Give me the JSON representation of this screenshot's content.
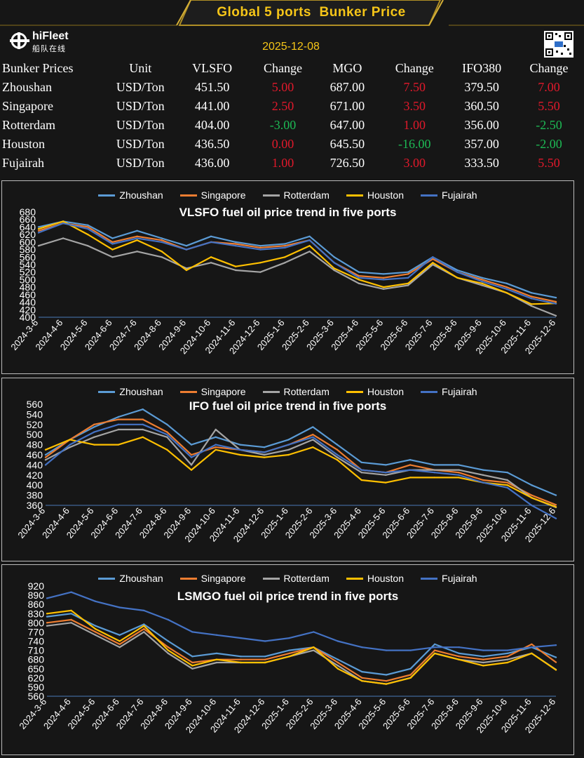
{
  "header": {
    "title": "Global 5 ports  Bunker Price",
    "brand": "hiFleet",
    "brand_sub": "船队在线",
    "date": "2025-12-08"
  },
  "colors": {
    "accent": "#f5c518",
    "up": "#e0192b",
    "down": "#1db954",
    "Zhoushan": "#5b9bd5",
    "Singapore": "#ed7d31",
    "Rotterdam": "#a5a5a5",
    "Houston": "#ffc000",
    "Fujairah": "#4472c4"
  },
  "table": {
    "headers": [
      "Bunker Prices",
      "Unit",
      "VLSFO",
      "Change",
      "MGO",
      "Change",
      "IFO380",
      "Change"
    ],
    "rows": [
      {
        "port": "Zhoushan",
        "unit": "USD/Ton",
        "vlsfo": "451.50",
        "vlsfo_chg": "5.00",
        "mgo": "687.00",
        "mgo_chg": "7.50",
        "ifo": "379.50",
        "ifo_chg": "7.00"
      },
      {
        "port": "Singapore",
        "unit": "USD/Ton",
        "vlsfo": "441.00",
        "vlsfo_chg": "2.50",
        "mgo": "671.00",
        "mgo_chg": "3.50",
        "ifo": "360.50",
        "ifo_chg": "5.50"
      },
      {
        "port": "Rotterdam",
        "unit": "USD/Ton",
        "vlsfo": "404.00",
        "vlsfo_chg": "-3.00",
        "mgo": "647.00",
        "mgo_chg": "1.00",
        "ifo": "356.00",
        "ifo_chg": "-2.50"
      },
      {
        "port": "Houston",
        "unit": "USD/Ton",
        "vlsfo": "436.50",
        "vlsfo_chg": "0.00",
        "mgo": "645.50",
        "mgo_chg": "-16.00",
        "ifo": "357.00",
        "ifo_chg": "-2.00"
      },
      {
        "port": "Fujairah",
        "unit": "USD/Ton",
        "vlsfo": "436.00",
        "vlsfo_chg": "1.00",
        "mgo": "726.50",
        "mgo_chg": "3.00",
        "ifo": "333.50",
        "ifo_chg": "5.50"
      }
    ]
  },
  "chart_data": [
    {
      "type": "line",
      "title": "VLSFO fuel oil price trend in five ports",
      "legend": [
        "Zhoushan",
        "Singapore",
        "Rotterdam",
        "Houston",
        "Fujairah"
      ],
      "legend_position": "top",
      "x": [
        "2024-3-6",
        "2024-4-6",
        "2024-5-6",
        "2024-6-6",
        "2024-7-6",
        "2024-8-6",
        "2024-9-6",
        "2024-10-6",
        "2024-11-6",
        "2024-12-6",
        "2025-1-6",
        "2025-2-6",
        "2025-3-6",
        "2025-4-6",
        "2025-5-6",
        "2025-6-6",
        "2025-7-6",
        "2025-8-6",
        "2025-9-6",
        "2025-10-6",
        "2025-11-6",
        "2025-12-6"
      ],
      "yticks": [
        400,
        420,
        440,
        460,
        480,
        500,
        520,
        540,
        560,
        580,
        600,
        620,
        640,
        660,
        680
      ],
      "ylim": [
        400,
        680
      ],
      "series": [
        {
          "name": "Zhoushan",
          "values": [
            640,
            655,
            645,
            610,
            630,
            610,
            590,
            615,
            600,
            590,
            595,
            615,
            560,
            520,
            515,
            520,
            560,
            525,
            505,
            490,
            465,
            452
          ]
        },
        {
          "name": "Singapore",
          "values": [
            630,
            650,
            640,
            600,
            615,
            605,
            580,
            600,
            595,
            585,
            590,
            605,
            545,
            510,
            505,
            515,
            555,
            520,
            500,
            480,
            455,
            441
          ]
        },
        {
          "name": "Rotterdam",
          "values": [
            590,
            610,
            590,
            560,
            575,
            560,
            530,
            545,
            525,
            520,
            545,
            575,
            525,
            490,
            475,
            485,
            540,
            505,
            485,
            465,
            430,
            404
          ]
        },
        {
          "name": "Houston",
          "values": [
            635,
            655,
            620,
            580,
            605,
            575,
            525,
            560,
            535,
            545,
            560,
            590,
            530,
            500,
            480,
            490,
            545,
            505,
            490,
            465,
            435,
            437
          ]
        },
        {
          "name": "Fujairah",
          "values": [
            625,
            650,
            635,
            595,
            610,
            600,
            580,
            600,
            590,
            580,
            585,
            605,
            545,
            505,
            500,
            505,
            560,
            520,
            495,
            475,
            450,
            436
          ]
        }
      ]
    },
    {
      "type": "line",
      "title": "IFO fuel oil price trend in five ports",
      "legend": [
        "Zhoushan",
        "Singapore",
        "Rotterdam",
        "Houston",
        "Fujairah"
      ],
      "legend_position": "top",
      "x": [
        "2024-3-6",
        "2024-4-6",
        "2024-5-6",
        "2024-6-6",
        "2024-7-6",
        "2024-8-6",
        "2024-9-6",
        "2024-10-6",
        "2024-11-6",
        "2024-12-6",
        "2025-1-6",
        "2025-2-6",
        "2025-3-6",
        "2025-4-6",
        "2025-5-6",
        "2025-6-6",
        "2025-7-6",
        "2025-8-6",
        "2025-9-6",
        "2025-10-6",
        "2025-11-6",
        "2025-12-6"
      ],
      "yticks": [
        360,
        380,
        400,
        420,
        440,
        460,
        480,
        500,
        520,
        540,
        560
      ],
      "ylim": [
        360,
        560
      ],
      "series": [
        {
          "name": "Zhoushan",
          "values": [
            460,
            490,
            515,
            535,
            550,
            520,
            480,
            495,
            480,
            475,
            490,
            515,
            480,
            445,
            440,
            450,
            440,
            440,
            430,
            425,
            400,
            380
          ]
        },
        {
          "name": "Singapore",
          "values": [
            455,
            490,
            520,
            530,
            530,
            505,
            460,
            475,
            470,
            465,
            480,
            500,
            470,
            430,
            425,
            440,
            430,
            425,
            410,
            405,
            380,
            361
          ]
        },
        {
          "name": "Rotterdam",
          "values": [
            450,
            475,
            495,
            510,
            510,
            495,
            440,
            510,
            470,
            460,
            470,
            490,
            455,
            425,
            420,
            430,
            430,
            430,
            420,
            410,
            375,
            356
          ]
        },
        {
          "name": "Houston",
          "values": [
            470,
            490,
            480,
            480,
            495,
            470,
            430,
            470,
            460,
            455,
            460,
            475,
            450,
            410,
            405,
            415,
            415,
            415,
            405,
            400,
            375,
            357
          ]
        },
        {
          "name": "Fujairah",
          "values": [
            440,
            480,
            505,
            520,
            520,
            500,
            455,
            480,
            470,
            465,
            480,
            495,
            460,
            430,
            425,
            430,
            425,
            420,
            405,
            395,
            360,
            334
          ]
        }
      ]
    },
    {
      "type": "line",
      "title": "LSMGO fuel oil price trend in five ports",
      "legend": [
        "Zhoushan",
        "Singapore",
        "Rotterdam",
        "Houston",
        "Fujairah"
      ],
      "legend_position": "top",
      "x": [
        "2024-3-6",
        "2024-4-6",
        "2024-5-6",
        "2024-6-6",
        "2024-7-6",
        "2024-8-6",
        "2024-9-6",
        "2024-10-6",
        "2024-11-6",
        "2024-12-6",
        "2025-1-6",
        "2025-2-6",
        "2025-3-6",
        "2025-4-6",
        "2025-5-6",
        "2025-6-6",
        "2025-7-6",
        "2025-8-6",
        "2025-9-6",
        "2025-10-6",
        "2025-11-6",
        "2025-12-6"
      ],
      "yticks": [
        560,
        590,
        620,
        650,
        680,
        710,
        740,
        770,
        800,
        830,
        860,
        890,
        920
      ],
      "ylim": [
        560,
        920
      ],
      "series": [
        {
          "name": "Zhoushan",
          "values": [
            820,
            830,
            790,
            760,
            795,
            740,
            690,
            700,
            690,
            690,
            710,
            720,
            680,
            640,
            630,
            650,
            730,
            700,
            690,
            700,
            720,
            687
          ]
        },
        {
          "name": "Singapore",
          "values": [
            800,
            810,
            770,
            730,
            780,
            720,
            670,
            680,
            680,
            680,
            700,
            720,
            670,
            620,
            610,
            630,
            710,
            690,
            680,
            690,
            730,
            671
          ]
        },
        {
          "name": "Rotterdam",
          "values": [
            790,
            800,
            760,
            720,
            770,
            700,
            650,
            670,
            670,
            670,
            690,
            710,
            660,
            610,
            600,
            620,
            700,
            680,
            670,
            680,
            700,
            647
          ]
        },
        {
          "name": "Houston",
          "values": [
            830,
            840,
            780,
            740,
            790,
            710,
            660,
            680,
            670,
            670,
            690,
            720,
            650,
            610,
            600,
            620,
            700,
            680,
            660,
            670,
            700,
            646
          ]
        },
        {
          "name": "Fujairah",
          "values": [
            880,
            900,
            870,
            850,
            840,
            810,
            770,
            760,
            750,
            740,
            750,
            770,
            740,
            720,
            710,
            710,
            720,
            720,
            710,
            710,
            720,
            727
          ]
        }
      ]
    }
  ]
}
